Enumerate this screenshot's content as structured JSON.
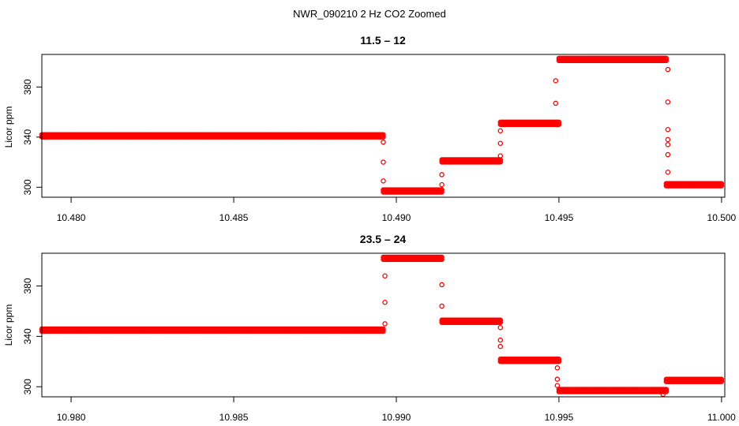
{
  "figure_title": "NWR_090210  2 Hz CO2 Zoomed",
  "colors": {
    "points": "#ff0000",
    "axes": "#000000",
    "background": "#ffffff"
  },
  "chart_data": [
    {
      "type": "scatter",
      "title": "11.5 – 12",
      "xlabel": "",
      "ylabel": "Licor ppm",
      "xlim": [
        10.4791,
        10.5001
      ],
      "ylim": [
        292,
        406
      ],
      "xticks": [
        10.48,
        10.485,
        10.49,
        10.495,
        10.5
      ],
      "xtick_labels": [
        "10.480",
        "10.485",
        "10.490",
        "10.495",
        "10.500"
      ],
      "yticks": [
        300,
        340,
        380
      ],
      "ytick_labels": [
        "300",
        "340",
        "380"
      ],
      "grid": false,
      "marker": "open-circle",
      "segments": [
        {
          "x_start": 10.4791,
          "x_end": 10.4896,
          "y": 341
        },
        {
          "x_start": 10.4896,
          "x_end": 10.4914,
          "y": 297
        },
        {
          "x_start": 10.4914,
          "x_end": 10.4932,
          "y": 321
        },
        {
          "x_start": 10.4932,
          "x_end": 10.495,
          "y": 351
        },
        {
          "x_start": 10.495,
          "x_end": 10.4983,
          "y": 402
        },
        {
          "x_start": 10.4983,
          "x_end": 10.5,
          "y": 302
        }
      ],
      "transitions": [
        {
          "x": 10.4896,
          "y": [
            336,
            320,
            305
          ]
        },
        {
          "x": 10.4914,
          "y": [
            302,
            310
          ]
        },
        {
          "x": 10.4932,
          "y": [
            325,
            335,
            345
          ]
        },
        {
          "x": 10.4949,
          "y": [
            367,
            385
          ]
        },
        {
          "x": 10.49835,
          "y": [
            394,
            368,
            346,
            338,
            334,
            326,
            312
          ]
        }
      ]
    },
    {
      "type": "scatter",
      "title": "23.5 – 24",
      "xlabel": "",
      "ylabel": "Licor ppm",
      "xlim": [
        10.9791,
        11.0001
      ],
      "ylim": [
        292,
        406
      ],
      "xticks": [
        10.98,
        10.985,
        10.99,
        10.995,
        11.0
      ],
      "xtick_labels": [
        "10.980",
        "10.985",
        "10.990",
        "10.995",
        "11.000"
      ],
      "yticks": [
        300,
        340,
        380
      ],
      "ytick_labels": [
        "300",
        "340",
        "380"
      ],
      "grid": false,
      "marker": "open-circle",
      "segments": [
        {
          "x_start": 10.9791,
          "x_end": 10.9896,
          "y": 345
        },
        {
          "x_start": 10.9896,
          "x_end": 10.9914,
          "y": 402
        },
        {
          "x_start": 10.9914,
          "x_end": 10.9932,
          "y": 352
        },
        {
          "x_start": 10.9932,
          "x_end": 10.995,
          "y": 321
        },
        {
          "x_start": 10.995,
          "x_end": 10.9983,
          "y": 297
        },
        {
          "x_start": 10.9983,
          "x_end": 11.0,
          "y": 305
        }
      ],
      "transitions": [
        {
          "x": 10.98965,
          "y": [
            350,
            367,
            388
          ]
        },
        {
          "x": 10.9914,
          "y": [
            381,
            364
          ]
        },
        {
          "x": 10.9932,
          "y": [
            347,
            337,
            332
          ]
        },
        {
          "x": 10.99495,
          "y": [
            315,
            306,
            301
          ]
        },
        {
          "x": 10.9982,
          "y": [
            294
          ]
        }
      ]
    }
  ]
}
